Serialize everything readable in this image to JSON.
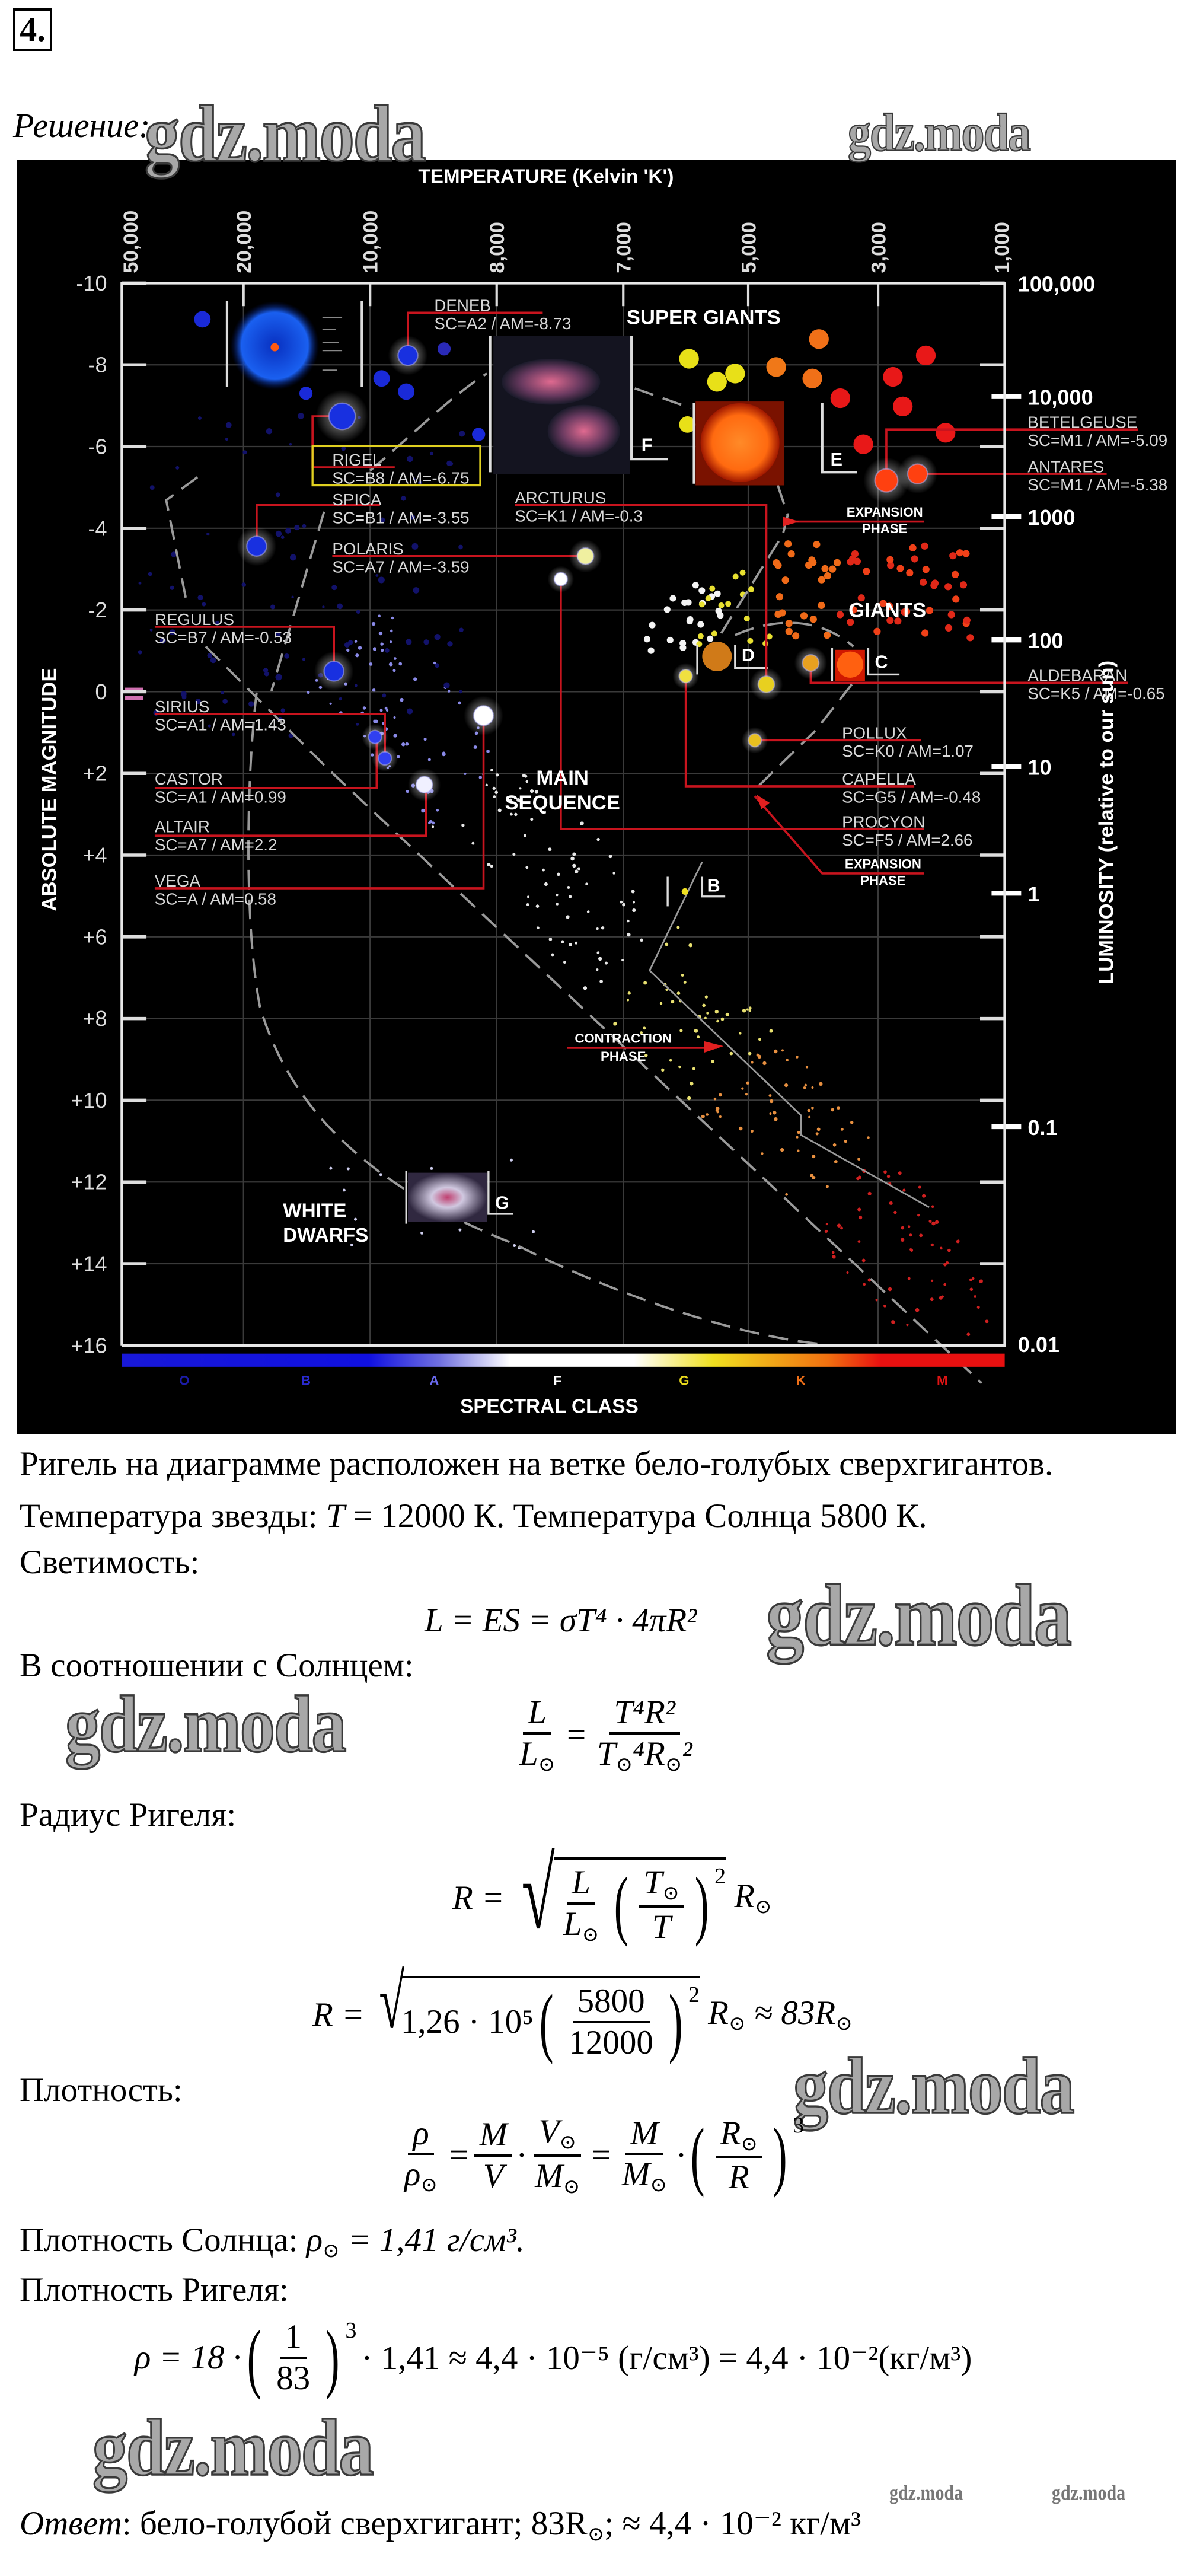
{
  "problem_number": "4.",
  "solution_label": "Решение:",
  "watermark": "gdz.moda",
  "diagram": {
    "title_top": "TEMPERATURE (Kelvin 'K')",
    "temperature_ticks": [
      "50,000",
      "20,000",
      "10,000",
      "8,000",
      "7,000",
      "5,000",
      "3,000",
      "1,000"
    ],
    "y_axis_label": "ABSOLUTE MAGNITUDE",
    "magnitude_ticks": [
      "-10",
      "-8",
      "-6",
      "-4",
      "-2",
      "0",
      "+2",
      "+4",
      "+6",
      "+8",
      "+10",
      "+12",
      "+14",
      "+16"
    ],
    "luminosity_label": "LUMINOSITY (relative to our sun)",
    "luminosity_ticks": [
      "100,000",
      "10,000",
      "1000",
      "100",
      "10",
      "1",
      "0.1",
      "0.01"
    ],
    "spectral_label": "SPECTRAL CLASS",
    "spectral_classes": [
      {
        "letter": "O",
        "color": "#1c1ca8"
      },
      {
        "letter": "B",
        "color": "#2a2ad0"
      },
      {
        "letter": "A",
        "color": "#6a6af0"
      },
      {
        "letter": "F",
        "color": "#ffffff"
      },
      {
        "letter": "G",
        "color": "#e8d81c"
      },
      {
        "letter": "K",
        "color": "#f07018"
      },
      {
        "letter": "M",
        "color": "#e01414"
      }
    ],
    "regions": {
      "super_giants": "SUPER GIANTS",
      "giants": "GIANTS",
      "main_sequence_1": "MAIN",
      "main_sequence_2": "SEQUENCE",
      "white_dwarfs_1": "WHITE",
      "white_dwarfs_2": "DWARFS"
    },
    "phases": {
      "expansion_upper_1": "EXPANSION",
      "expansion_upper_2": "PHASE",
      "expansion_lower_1": "EXPANSION",
      "expansion_lower_2": "PHASE",
      "contraction_1": "CONTRACTION",
      "contraction_2": "PHASE"
    },
    "stars": [
      {
        "name": "DENEB",
        "info": "SC=A2 / AM=-8.73"
      },
      {
        "name": "RIGEL",
        "info": "SC=B8 / AM=-6.75"
      },
      {
        "name": "SPICA",
        "info": "SC=B1 / AM=-3.55"
      },
      {
        "name": "POLARIS",
        "info": "SC=A7 / AM=-3.59"
      },
      {
        "name": "ARCTURUS",
        "info": "SC=K1 / AM=-0.3"
      },
      {
        "name": "REGULUS",
        "info": "SC=B7 / AM=-0.53"
      },
      {
        "name": "SIRIUS",
        "info": "SC=A1 / AM=1.43"
      },
      {
        "name": "CASTOR",
        "info": "SC=A1 / AM=0.99"
      },
      {
        "name": "ALTAIR",
        "info": "SC=A7 / AM=2.2"
      },
      {
        "name": "VEGA",
        "info": "SC=A / AM=0.58"
      },
      {
        "name": "BETELGEUSE",
        "info": "SC=M1 / AM=-5.09"
      },
      {
        "name": "ANTARES",
        "info": "SC=M1 / AM=-5.38"
      },
      {
        "name": "ALDEBARAN",
        "info": "SC=K5 / AM=-0.65"
      },
      {
        "name": "POLLUX",
        "info": "SC=K0 / AM=1.07"
      },
      {
        "name": "CAPELLA",
        "info": "SC=G5 / AM=-0.48"
      },
      {
        "name": "PROCYON",
        "info": "SC=F5 / AM=2.66"
      }
    ],
    "markers": {
      "b": "B",
      "c": "C",
      "d": "D",
      "e": "E",
      "f": "F",
      "g": "G"
    },
    "highlight_color": "#e0d020",
    "connector_color": "#c8141e"
  },
  "text": {
    "line1": "Ригель на диаграмме расположен на ветке бело-голубых сверхгигантов.",
    "line2_a": "Температура звезды: ",
    "line2_T": "T",
    "line2_b": " = 12000 К. Температура Солнца 5800 К.",
    "luminosity_heading": "Светимость:",
    "formula_luminosity": "L = ES = σT⁴ · 4πR²",
    "ratio_heading": "В соотношении с Солнцем:",
    "ratio": {
      "lhs_num": "L",
      "lhs_den": "L⊙",
      "eq": "=",
      "rhs_num": "T⁴R²",
      "rhs_den": "T⊙⁴R⊙²"
    },
    "radius_heading": "Радиус Ригеля:",
    "radius_formula": {
      "lhs": "R =",
      "frac1_num": "L",
      "frac1_den": "L⊙",
      "frac2_num": "T⊙",
      "frac2_den": "T",
      "exp": "2",
      "tail": "R⊙"
    },
    "radius_value": {
      "lhs": "R =",
      "root": "1,26 · 10⁵",
      "frac_num": "5800",
      "frac_den": "12000",
      "exp": "2",
      "tail": "R⊙ ≈ 83R⊙"
    },
    "density_heading": "Плотность:",
    "density_formula": {
      "f1_num": "ρ",
      "f1_den": "ρ⊙",
      "eq1": "=",
      "f2_num": "M",
      "f2_den": "V",
      "dot1": "·",
      "f3_num": "V⊙",
      "f3_den": "M⊙",
      "eq2": "=",
      "f4_num": "M",
      "f4_den": "M⊙",
      "dot2": "·",
      "f5_num": "R⊙",
      "f5_den": "R",
      "exp": "3"
    },
    "sun_density_label": "Плотность Солнца: ",
    "sun_density_value": "ρ⊙ = 1,41 г/см³.",
    "rigel_density_heading": "Плотность Ригеля:",
    "rigel_density": {
      "a": "ρ = 18 ·",
      "num": "1",
      "den": "83",
      "exp": "3",
      "b": "· 1,41 ≈ 4,4 · 10⁻⁵ (г/см³) = 4,4 · 10⁻²(кг/м³)"
    },
    "answer_label": "Ответ",
    "answer_text": ": бело-голубой сверхгигант; 83R⊙; ≈ 4,4 · 10⁻² кг/м³"
  }
}
